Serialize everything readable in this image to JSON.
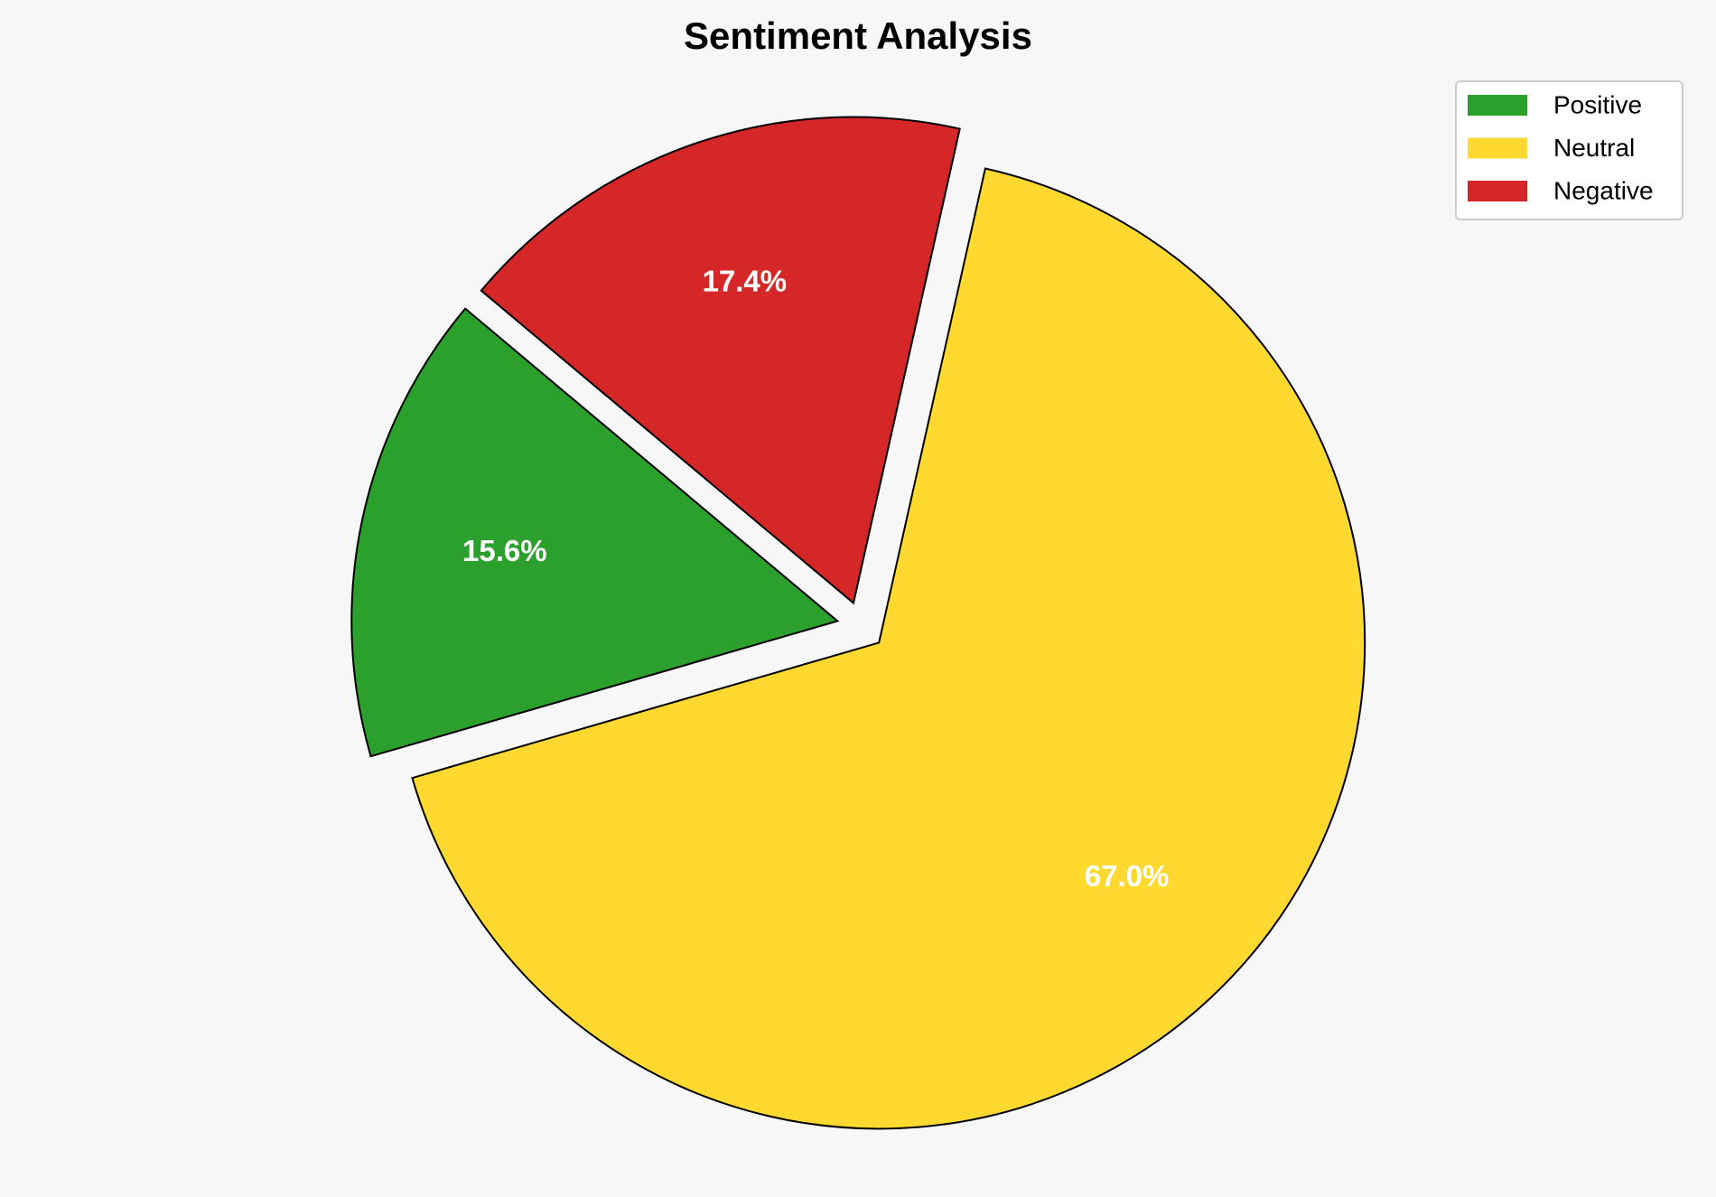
{
  "chart_data": {
    "type": "pie",
    "title": "Sentiment Analysis",
    "categories": [
      "Positive",
      "Neutral",
      "Negative"
    ],
    "values": [
      15.6,
      67.0,
      17.4
    ],
    "labels": [
      "15.6%",
      "67.0%",
      "17.4%"
    ],
    "colors": [
      "#2ca02c",
      "#ffd92f",
      "#d62728"
    ],
    "explode": [
      0.05,
      0.05,
      0.05
    ],
    "start_angle": 140,
    "edge_color": "#000000",
    "legend": {
      "entries": [
        "Positive",
        "Neutral",
        "Negative"
      ],
      "placement": "top-right"
    },
    "background": "#f7f7f7"
  }
}
